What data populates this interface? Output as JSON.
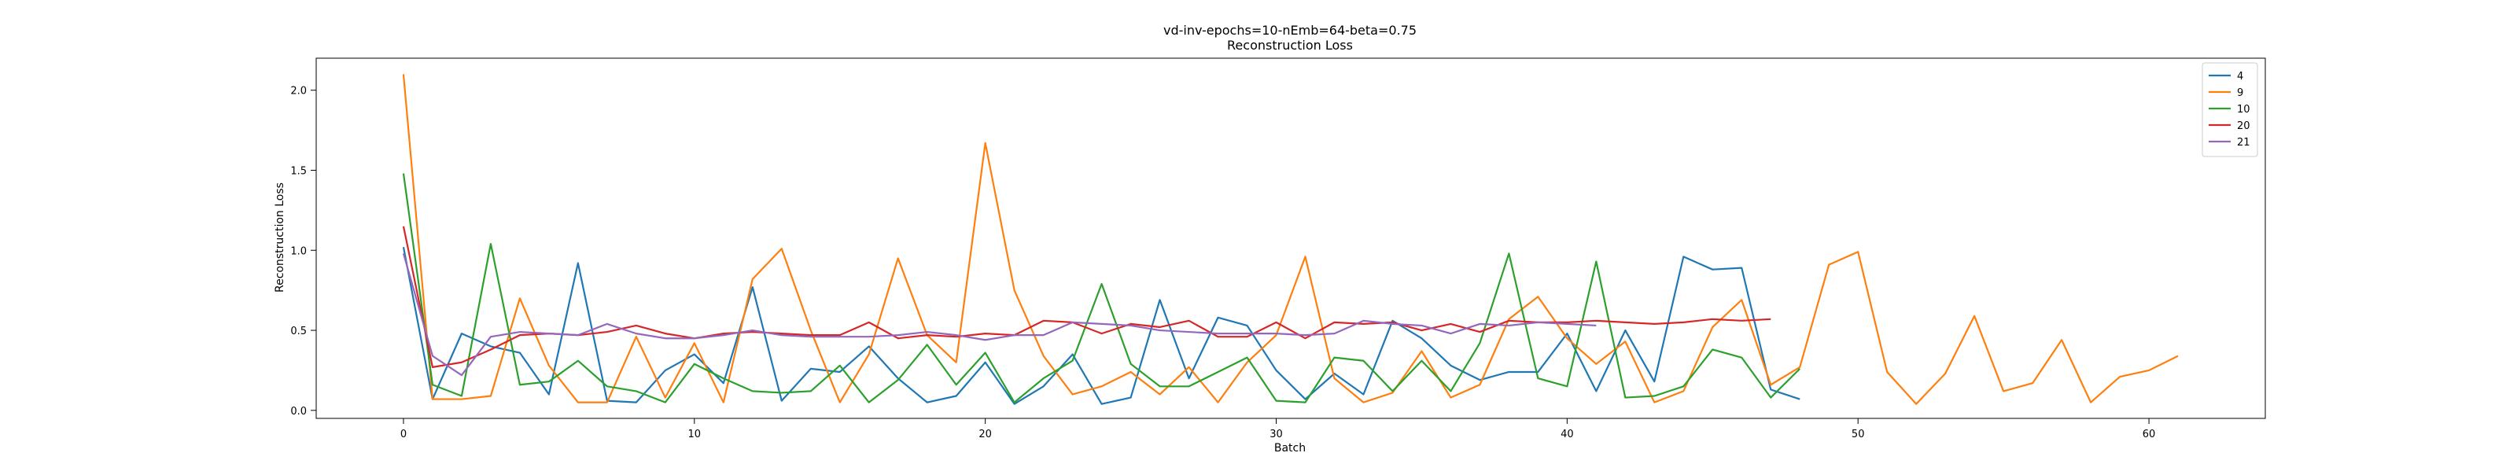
{
  "chart_data": {
    "type": "line",
    "title": "vd-inv-epochs=10-nEmb=64-beta=0.75",
    "subtitle": "Reconstruction Loss",
    "xlabel": "Batch",
    "ylabel": "Reconstruction Loss",
    "xlim": [
      -3,
      64
    ],
    "ylim": [
      -0.05,
      2.2
    ],
    "xticks": [
      0,
      10,
      20,
      30,
      40,
      50,
      60
    ],
    "yticks": [
      0.0,
      0.5,
      1.0,
      1.5,
      2.0
    ],
    "grid": false,
    "legend_position": "top-right",
    "series": [
      {
        "name": "4",
        "color": "#1f77b4",
        "values": [
          1.02,
          0.07,
          0.48,
          0.4,
          0.36,
          0.1,
          0.92,
          0.06,
          0.05,
          0.25,
          0.35,
          0.17,
          0.77,
          0.06,
          0.26,
          0.24,
          0.4,
          0.2,
          0.05,
          0.09,
          0.3,
          0.04,
          0.15,
          0.35,
          0.04,
          0.08,
          0.69,
          0.2,
          0.58,
          0.53,
          0.25,
          0.07,
          0.23,
          0.1,
          0.56,
          0.45,
          0.28,
          0.19,
          0.24,
          0.24,
          0.48,
          0.12,
          0.5,
          0.18,
          0.96,
          0.88,
          0.89,
          0.13,
          0.07
        ]
      },
      {
        "name": "9",
        "color": "#ff7f0e",
        "values": [
          2.1,
          0.07,
          0.07,
          0.09,
          0.7,
          0.28,
          0.05,
          0.05,
          0.46,
          0.08,
          0.42,
          0.05,
          0.82,
          1.01,
          0.5,
          0.05,
          0.35,
          0.95,
          0.47,
          0.3,
          1.67,
          0.75,
          0.34,
          0.1,
          0.15,
          0.24,
          0.1,
          0.27,
          0.05,
          0.3,
          0.47,
          0.96,
          0.2,
          0.05,
          0.11,
          0.37,
          0.08,
          0.16,
          0.57,
          0.71,
          0.45,
          0.29,
          0.43,
          0.05,
          0.12,
          0.52,
          0.69,
          0.16,
          0.27,
          0.91,
          0.99,
          0.24,
          0.04,
          0.23,
          0.59,
          0.12,
          0.17,
          0.44,
          0.05,
          0.21,
          0.25,
          0.34
        ]
      },
      {
        "name": "10",
        "color": "#2ca02c",
        "values": [
          1.48,
          0.16,
          0.09,
          1.04,
          0.16,
          0.18,
          0.31,
          0.15,
          0.12,
          0.05,
          0.29,
          0.2,
          0.12,
          0.11,
          0.12,
          0.28,
          0.05,
          0.19,
          0.41,
          0.16,
          0.36,
          0.05,
          0.2,
          0.31,
          0.79,
          0.29,
          0.15,
          0.15,
          0.24,
          0.33,
          0.06,
          0.05,
          0.33,
          0.31,
          0.12,
          0.31,
          0.12,
          0.42,
          0.98,
          0.2,
          0.15,
          0.93,
          0.08,
          0.09,
          0.15,
          0.38,
          0.33,
          0.08,
          0.26
        ]
      },
      {
        "name": "20",
        "color": "#d62728",
        "values": [
          1.15,
          0.27,
          0.3,
          0.38,
          0.47,
          0.48,
          0.47,
          0.49,
          0.53,
          0.48,
          0.45,
          0.48,
          0.49,
          0.48,
          0.47,
          0.47,
          0.55,
          0.45,
          0.47,
          0.46,
          0.48,
          0.47,
          0.56,
          0.55,
          0.48,
          0.54,
          0.52,
          0.56,
          0.46,
          0.46,
          0.55,
          0.45,
          0.55,
          0.54,
          0.55,
          0.5,
          0.54,
          0.49,
          0.56,
          0.55,
          0.55,
          0.56,
          0.55,
          0.54,
          0.55,
          0.57,
          0.56,
          0.57
        ]
      },
      {
        "name": "21",
        "color": "#9467bd",
        "values": [
          0.98,
          0.34,
          0.22,
          0.46,
          0.49,
          0.48,
          0.47,
          0.54,
          0.48,
          0.45,
          0.45,
          0.47,
          0.5,
          0.47,
          0.46,
          0.46,
          0.46,
          0.47,
          0.49,
          0.47,
          0.44,
          0.47,
          0.47,
          0.55,
          0.54,
          0.53,
          0.5,
          0.49,
          0.48,
          0.48,
          0.48,
          0.47,
          0.48,
          0.56,
          0.54,
          0.53,
          0.48,
          0.54,
          0.53,
          0.55,
          0.54,
          0.53
        ]
      }
    ]
  }
}
